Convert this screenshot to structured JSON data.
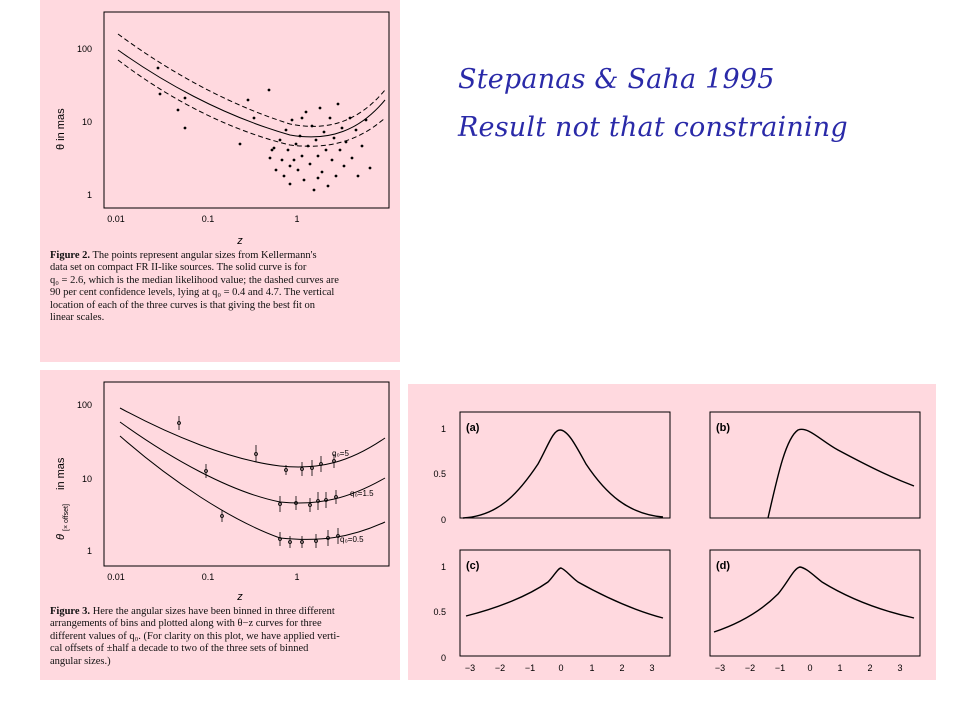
{
  "slide_title": {
    "line1": "Stepanas & Saha 1995",
    "line2": "Result not that constraining"
  },
  "figure2": {
    "y_label": "θ in mas",
    "x_label": "z",
    "y_ticks": [
      "100",
      "10",
      "1"
    ],
    "x_ticks": [
      "0.01",
      "0.1",
      "1"
    ],
    "caption_label": "Figure 2.",
    "caption_lines": [
      " The points represent angular sizes from Kellermann's",
      "data set on compact FR II-like sources. The solid curve is for",
      "q₀ = 2.6, which is the median likelihood value; the dashed curves are",
      "90 per cent confidence levels, lying at q₀ = 0.4 and 4.7. The vertical",
      "location of each of the three curves is that giving the best fit on",
      "linear scales."
    ]
  },
  "figure3": {
    "y_label_main": "θ",
    "y_label_sub": "[× offset]",
    "y_label_unit": "in mas",
    "x_label": "z",
    "y_ticks": [
      "100",
      "10",
      "1"
    ],
    "x_ticks": [
      "0.01",
      "0.1",
      "1"
    ],
    "curve_labels": [
      "q₀=5",
      "q₀=1.5",
      "q₀=0.5"
    ],
    "caption_label": "Figure 3.",
    "caption_lines": [
      " Here the angular sizes have been binned in three different",
      "arrangements of bins and plotted along with θ−z curves for three",
      "different values of q₀. (For clarity on this plot, we have applied verti-",
      "cal offsets of  ±half a decade to two of the three sets of binned",
      "angular sizes.)"
    ]
  },
  "figure_abcd": {
    "panels": [
      {
        "label": "(a)",
        "y_ticks": [
          "1",
          "0.5",
          "0"
        ]
      },
      {
        "label": "(b)",
        "y_ticks": []
      },
      {
        "label": "(c)",
        "y_ticks": [
          "1",
          "0.5",
          "0"
        ]
      },
      {
        "label": "(d)",
        "y_ticks": []
      }
    ],
    "x_ticks": [
      "−3",
      "−2",
      "−1",
      "0",
      "1",
      "2",
      "3"
    ]
  }
}
